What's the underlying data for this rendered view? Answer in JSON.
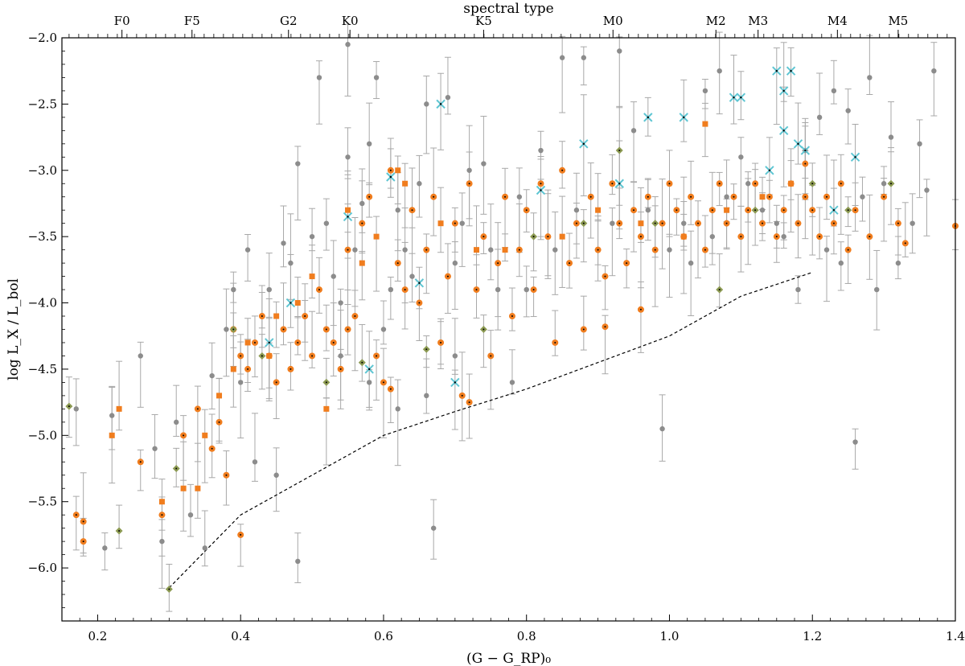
{
  "chart_data": {
    "type": "scatter",
    "title": "",
    "xlabel": "(G − G_RP)₀",
    "ylabel": "log L_X / L_bol",
    "top_axis_label": "spectral type",
    "xlim": [
      0.15,
      1.4
    ],
    "ylim": [
      -6.4,
      -2.0
    ],
    "x_ticks": [
      0.2,
      0.4,
      0.6,
      0.8,
      1.0,
      1.2,
      1.4
    ],
    "x_tick_labels": [
      "0.2",
      "0.4",
      "0.6",
      "0.8",
      "1.0",
      "1.2",
      "1.4"
    ],
    "y_ticks": [
      -6.0,
      -5.5,
      -5.0,
      -4.5,
      -4.0,
      -3.5,
      -3.0,
      -2.5,
      -2.0
    ],
    "y_tick_labels": [
      "−6.0",
      "−5.5",
      "−5.0",
      "−4.5",
      "−4.0",
      "−3.5",
      "−3.0",
      "−2.5",
      "−2.0"
    ],
    "spectral_types": [
      {
        "label": "F0",
        "x": 0.234
      },
      {
        "label": "F5",
        "x": 0.332
      },
      {
        "label": "G2",
        "x": 0.467
      },
      {
        "label": "K0",
        "x": 0.553
      },
      {
        "label": "K5",
        "x": 0.74
      },
      {
        "label": "M0",
        "x": 0.921
      },
      {
        "label": "M2",
        "x": 1.065
      },
      {
        "label": "M3",
        "x": 1.124
      },
      {
        "label": "M4",
        "x": 1.235
      },
      {
        "label": "M5",
        "x": 1.32
      }
    ],
    "grid": false,
    "legend": "none",
    "colors": {
      "gray": "#8c8c8c",
      "orange": "#f07d1e",
      "cyan": "#5ec6d3",
      "olive": "#8c9a52",
      "threshold_line": "#000000"
    },
    "threshold_line": {
      "x": [
        0.3,
        0.4,
        0.5,
        0.6,
        0.7,
        0.8,
        0.9,
        1.0,
        1.1,
        1.2
      ],
      "y": [
        -6.15,
        -5.6,
        -5.3,
        -5.0,
        -4.82,
        -4.65,
        -4.45,
        -4.25,
        -3.95,
        -3.77
      ]
    },
    "series": [
      {
        "marker": "circle",
        "color": "gray",
        "points": [
          [
            0.17,
            -4.8
          ],
          [
            0.21,
            -5.85
          ],
          [
            0.22,
            -4.85
          ],
          [
            0.26,
            -4.4
          ],
          [
            0.28,
            -5.1
          ],
          [
            0.29,
            -5.8
          ],
          [
            0.31,
            -4.9
          ],
          [
            0.33,
            -5.6
          ],
          [
            0.35,
            -5.85
          ],
          [
            0.36,
            -4.55
          ],
          [
            0.39,
            -3.9
          ],
          [
            0.4,
            -4.6
          ],
          [
            0.41,
            -3.6
          ],
          [
            0.42,
            -5.2
          ],
          [
            0.45,
            -5.3
          ],
          [
            0.46,
            -3.55
          ],
          [
            0.48,
            -2.95
          ],
          [
            0.48,
            -5.95
          ],
          [
            0.49,
            -4.1
          ],
          [
            0.51,
            -2.3
          ],
          [
            0.52,
            -3.4
          ],
          [
            0.54,
            -4.0
          ],
          [
            0.55,
            -2.05
          ],
          [
            0.55,
            -2.9
          ],
          [
            0.57,
            -3.25
          ],
          [
            0.58,
            -2.8
          ],
          [
            0.59,
            -2.3
          ],
          [
            0.6,
            -4.2
          ],
          [
            0.61,
            -3.9
          ],
          [
            0.62,
            -3.3
          ],
          [
            0.64,
            -3.8
          ],
          [
            0.65,
            -3.1
          ],
          [
            0.66,
            -2.5
          ],
          [
            0.67,
            -5.7
          ],
          [
            0.68,
            -4.3
          ],
          [
            0.69,
            -2.45
          ],
          [
            0.7,
            -3.7
          ],
          [
            0.72,
            -3.0
          ],
          [
            0.74,
            -2.95
          ],
          [
            0.76,
            -3.9
          ],
          [
            0.78,
            -4.6
          ],
          [
            0.8,
            -3.9
          ],
          [
            0.82,
            -2.85
          ],
          [
            0.84,
            -3.6
          ],
          [
            0.85,
            -2.15
          ],
          [
            0.88,
            -2.15
          ],
          [
            0.9,
            -3.6
          ],
          [
            0.93,
            -2.1
          ],
          [
            0.95,
            -2.7
          ],
          [
            0.99,
            -4.95
          ],
          [
            1.0,
            -3.6
          ],
          [
            1.02,
            -3.4
          ],
          [
            1.05,
            -2.4
          ],
          [
            1.07,
            -2.25
          ],
          [
            1.08,
            -3.2
          ],
          [
            1.1,
            -2.9
          ],
          [
            1.13,
            -3.3
          ],
          [
            1.16,
            -3.5
          ],
          [
            1.19,
            -2.85
          ],
          [
            1.21,
            -2.6
          ],
          [
            1.23,
            -2.4
          ],
          [
            1.25,
            -2.55
          ],
          [
            1.26,
            -5.05
          ],
          [
            1.27,
            -3.2
          ],
          [
            1.28,
            -2.3
          ],
          [
            1.3,
            -3.1
          ],
          [
            1.31,
            -2.75
          ],
          [
            1.32,
            -3.7
          ],
          [
            1.34,
            -3.4
          ],
          [
            1.36,
            -3.15
          ],
          [
            1.37,
            -2.25
          ],
          [
            1.35,
            -2.8
          ],
          [
            1.29,
            -3.9
          ],
          [
            1.24,
            -3.7
          ],
          [
            1.22,
            -3.6
          ],
          [
            1.18,
            -3.9
          ],
          [
            1.15,
            -3.4
          ],
          [
            1.11,
            -3.1
          ],
          [
            1.06,
            -3.5
          ],
          [
            1.03,
            -3.7
          ],
          [
            0.97,
            -3.3
          ],
          [
            0.92,
            -3.4
          ],
          [
            0.87,
            -3.3
          ],
          [
            0.83,
            -3.5
          ],
          [
            0.79,
            -3.2
          ],
          [
            0.75,
            -3.6
          ],
          [
            0.71,
            -3.4
          ],
          [
            0.63,
            -3.6
          ],
          [
            0.56,
            -3.6
          ],
          [
            0.53,
            -3.8
          ],
          [
            0.5,
            -3.5
          ],
          [
            0.47,
            -3.7
          ],
          [
            0.44,
            -3.9
          ],
          [
            0.38,
            -4.2
          ],
          [
            0.43,
            -4.1
          ],
          [
            0.54,
            -4.4
          ],
          [
            0.58,
            -4.6
          ],
          [
            0.62,
            -4.8
          ],
          [
            0.66,
            -4.7
          ],
          [
            0.7,
            -4.4
          ]
        ]
      },
      {
        "marker": "circle",
        "color": "orange",
        "points": [
          [
            0.17,
            -5.6
          ],
          [
            0.18,
            -5.8
          ],
          [
            0.18,
            -5.65
          ],
          [
            0.26,
            -5.2
          ],
          [
            0.29,
            -5.6
          ],
          [
            0.32,
            -5.0
          ],
          [
            0.34,
            -4.8
          ],
          [
            0.36,
            -5.1
          ],
          [
            0.37,
            -4.9
          ],
          [
            0.38,
            -5.3
          ],
          [
            0.39,
            -4.2
          ],
          [
            0.4,
            -4.4
          ],
          [
            0.41,
            -4.5
          ],
          [
            0.42,
            -4.3
          ],
          [
            0.43,
            -4.1
          ],
          [
            0.44,
            -4.4
          ],
          [
            0.45,
            -4.6
          ],
          [
            0.46,
            -4.2
          ],
          [
            0.47,
            -4.5
          ],
          [
            0.48,
            -4.3
          ],
          [
            0.49,
            -4.1
          ],
          [
            0.5,
            -4.4
          ],
          [
            0.51,
            -3.9
          ],
          [
            0.52,
            -4.2
          ],
          [
            0.53,
            -4.3
          ],
          [
            0.54,
            -4.5
          ],
          [
            0.55,
            -3.6
          ],
          [
            0.56,
            -4.1
          ],
          [
            0.57,
            -3.4
          ],
          [
            0.58,
            -3.2
          ],
          [
            0.59,
            -4.4
          ],
          [
            0.6,
            -4.6
          ],
          [
            0.61,
            -3.0
          ],
          [
            0.62,
            -3.7
          ],
          [
            0.63,
            -3.9
          ],
          [
            0.64,
            -3.3
          ],
          [
            0.65,
            -4.0
          ],
          [
            0.66,
            -3.6
          ],
          [
            0.67,
            -3.2
          ],
          [
            0.68,
            -4.3
          ],
          [
            0.69,
            -3.8
          ],
          [
            0.7,
            -3.4
          ],
          [
            0.71,
            -4.7
          ],
          [
            0.72,
            -3.1
          ],
          [
            0.73,
            -3.9
          ],
          [
            0.74,
            -3.5
          ],
          [
            0.75,
            -4.4
          ],
          [
            0.76,
            -3.7
          ],
          [
            0.77,
            -3.2
          ],
          [
            0.78,
            -4.1
          ],
          [
            0.79,
            -3.6
          ],
          [
            0.8,
            -3.3
          ],
          [
            0.81,
            -3.9
          ],
          [
            0.82,
            -3.1
          ],
          [
            0.83,
            -3.5
          ],
          [
            0.84,
            -4.3
          ],
          [
            0.85,
            -3.0
          ],
          [
            0.86,
            -3.7
          ],
          [
            0.87,
            -3.4
          ],
          [
            0.88,
            -4.2
          ],
          [
            0.89,
            -3.2
          ],
          [
            0.9,
            -3.6
          ],
          [
            0.91,
            -3.8
          ],
          [
            0.92,
            -3.1
          ],
          [
            0.93,
            -3.4
          ],
          [
            0.94,
            -3.7
          ],
          [
            0.95,
            -3.3
          ],
          [
            0.96,
            -3.5
          ],
          [
            0.97,
            -3.2
          ],
          [
            0.98,
            -3.6
          ],
          [
            0.99,
            -3.4
          ],
          [
            1.0,
            -3.1
          ],
          [
            1.01,
            -3.3
          ],
          [
            1.02,
            -3.5
          ],
          [
            1.03,
            -3.2
          ],
          [
            1.04,
            -3.4
          ],
          [
            1.05,
            -3.6
          ],
          [
            1.06,
            -3.3
          ],
          [
            1.07,
            -3.1
          ],
          [
            1.08,
            -3.4
          ],
          [
            1.09,
            -3.2
          ],
          [
            1.1,
            -3.5
          ],
          [
            1.11,
            -3.3
          ],
          [
            1.12,
            -3.1
          ],
          [
            1.13,
            -3.4
          ],
          [
            1.14,
            -3.2
          ],
          [
            1.15,
            -3.5
          ],
          [
            1.16,
            -3.3
          ],
          [
            1.17,
            -3.1
          ],
          [
            1.18,
            -3.4
          ],
          [
            1.19,
            -3.2
          ],
          [
            1.2,
            -3.3
          ],
          [
            1.21,
            -3.5
          ],
          [
            1.22,
            -3.2
          ],
          [
            1.23,
            -3.4
          ],
          [
            1.24,
            -3.1
          ],
          [
            1.25,
            -3.6
          ],
          [
            1.26,
            -3.3
          ],
          [
            1.28,
            -3.5
          ],
          [
            1.3,
            -3.2
          ],
          [
            1.32,
            -3.4
          ],
          [
            1.33,
            -3.55
          ],
          [
            1.4,
            -3.42
          ],
          [
            0.4,
            -5.75
          ],
          [
            0.55,
            -4.2
          ],
          [
            0.61,
            -4.65
          ],
          [
            0.72,
            -4.75
          ],
          [
            0.91,
            -4.18
          ],
          [
            0.96,
            -4.05
          ],
          [
            1.19,
            -2.95
          ]
        ]
      },
      {
        "marker": "square",
        "color": "orange",
        "points": [
          [
            0.22,
            -5.0
          ],
          [
            0.23,
            -4.8
          ],
          [
            0.29,
            -5.5
          ],
          [
            0.32,
            -5.4
          ],
          [
            0.34,
            -5.4
          ],
          [
            0.35,
            -5.0
          ],
          [
            0.37,
            -4.7
          ],
          [
            0.39,
            -4.5
          ],
          [
            0.41,
            -4.3
          ],
          [
            0.45,
            -4.1
          ],
          [
            0.48,
            -4.0
          ],
          [
            0.5,
            -3.8
          ],
          [
            0.52,
            -4.8
          ],
          [
            0.55,
            -3.3
          ],
          [
            0.59,
            -3.5
          ],
          [
            0.63,
            -3.1
          ],
          [
            0.68,
            -3.4
          ],
          [
            0.73,
            -3.6
          ],
          [
            0.77,
            -3.6
          ],
          [
            0.85,
            -3.5
          ],
          [
            0.9,
            -3.3
          ],
          [
            0.96,
            -3.4
          ],
          [
            1.02,
            -3.5
          ],
          [
            1.08,
            -3.3
          ],
          [
            1.13,
            -3.2
          ],
          [
            1.17,
            -3.1
          ],
          [
            1.05,
            -2.65
          ],
          [
            0.62,
            -3.0
          ],
          [
            0.57,
            -3.7
          ],
          [
            0.44,
            -4.4
          ]
        ]
      },
      {
        "marker": "x",
        "color": "cyan",
        "points": [
          [
            0.47,
            -4.0
          ],
          [
            0.55,
            -3.35
          ],
          [
            0.61,
            -3.05
          ],
          [
            0.65,
            -3.85
          ],
          [
            0.68,
            -2.5
          ],
          [
            0.82,
            -3.15
          ],
          [
            0.88,
            -2.8
          ],
          [
            0.97,
            -2.6
          ],
          [
            1.02,
            -2.6
          ],
          [
            1.09,
            -2.45
          ],
          [
            1.1,
            -2.45
          ],
          [
            1.15,
            -2.25
          ],
          [
            1.16,
            -2.4
          ],
          [
            1.17,
            -2.25
          ],
          [
            1.16,
            -2.7
          ],
          [
            1.18,
            -2.8
          ],
          [
            1.19,
            -2.85
          ],
          [
            1.26,
            -2.9
          ],
          [
            1.14,
            -3.0
          ],
          [
            0.93,
            -3.1
          ],
          [
            0.44,
            -4.3
          ],
          [
            0.58,
            -4.5
          ],
          [
            0.7,
            -4.6
          ],
          [
            1.23,
            -3.3
          ]
        ]
      },
      {
        "marker": "diamond",
        "color": "olive",
        "points": [
          [
            0.16,
            -4.78
          ],
          [
            0.23,
            -5.72
          ],
          [
            0.3,
            -6.16
          ],
          [
            0.31,
            -5.25
          ],
          [
            0.39,
            -4.2
          ],
          [
            0.43,
            -4.4
          ],
          [
            0.52,
            -4.6
          ],
          [
            0.57,
            -4.45
          ],
          [
            0.66,
            -4.35
          ],
          [
            0.74,
            -4.2
          ],
          [
            0.81,
            -3.5
          ],
          [
            0.88,
            -3.4
          ],
          [
            0.93,
            -2.85
          ],
          [
            0.98,
            -3.4
          ],
          [
            1.07,
            -3.9
          ],
          [
            1.12,
            -3.3
          ],
          [
            1.2,
            -3.1
          ],
          [
            1.25,
            -3.3
          ],
          [
            1.31,
            -3.1
          ]
        ]
      }
    ]
  }
}
